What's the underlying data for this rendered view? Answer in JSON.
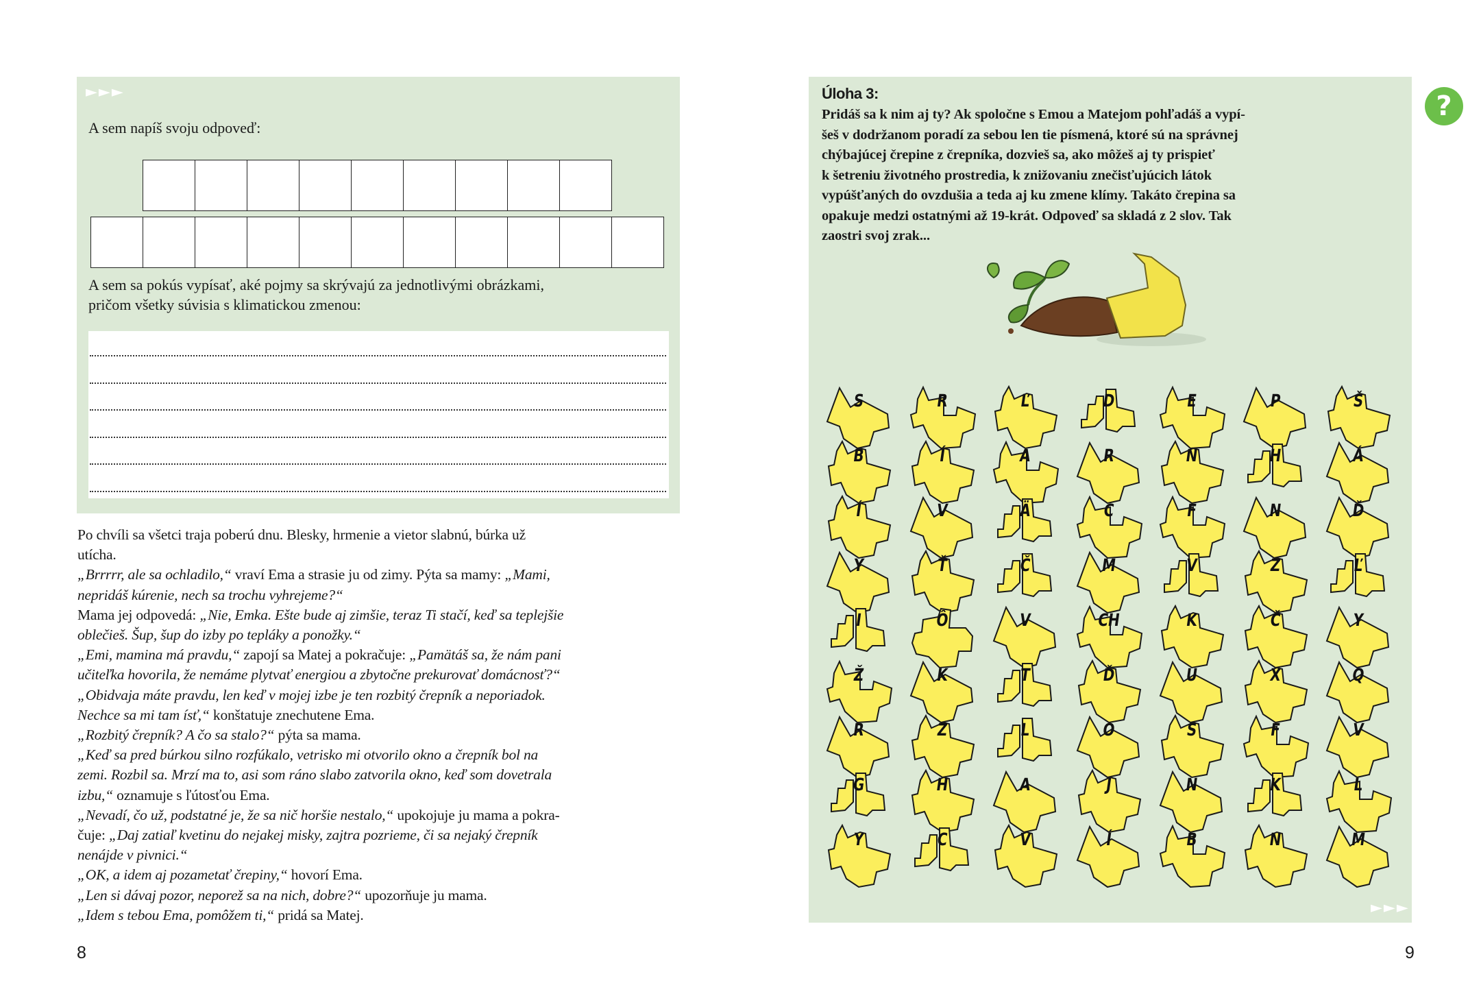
{
  "left_page": {
    "page_number": "8",
    "answer_prompt": "A sem napíš svoju odpoveď:",
    "answer_row1_cells": 9,
    "answer_row2_cells": 11,
    "concepts_prompt_line1": "A sem sa pokús vypísať, aké pojmy sa skrývajú za jednotlivými obrázkami,",
    "concepts_prompt_line2": "pričom všetky súvisia s klimatickou zmenou:",
    "dotted_lines": 6,
    "story_lines": [
      [
        {
          "t": "Po chvíli sa všetci traja poberú dnu. Blesky, hrmenie a vietor slabnú, búrka už",
          "i": false
        }
      ],
      [
        {
          "t": "utícha.",
          "i": false
        }
      ],
      [
        {
          "t": "„Brrrrr, ale sa ochladilo,“",
          "i": true
        },
        {
          "t": " vraví Ema a strasie ju od zimy. Pýta sa mamy: ",
          "i": false
        },
        {
          "t": "„Mami,",
          "i": true
        }
      ],
      [
        {
          "t": "nepridáš kúrenie, nech sa trochu vyhrejeme?“",
          "i": true
        }
      ],
      [
        {
          "t": "Mama jej odpovedá: ",
          "i": false
        },
        {
          "t": "„Nie, Emka. Ešte bude aj zimšie, teraz Ti stačí, keď sa teplejšie",
          "i": true
        }
      ],
      [
        {
          "t": "oblečieš. Šup, šup do izby po tepláky a ponožky.“",
          "i": true
        }
      ],
      [
        {
          "t": "„Emi, mamina má pravdu,“",
          "i": true
        },
        {
          "t": " zapojí sa Matej a pokračuje: ",
          "i": false
        },
        {
          "t": "„Pamätáš sa, že nám pani",
          "i": true
        }
      ],
      [
        {
          "t": "učiteľka hovorila, že nemáme plytvať energiou a zbytočne prekurovať domácnosť?“",
          "i": true
        }
      ],
      [
        {
          "t": " „Obidvaja máte pravdu, len keď v mojej izbe je ten rozbitý črepník a neporiadok.",
          "i": true
        }
      ],
      [
        {
          "t": "Nechce sa mi tam ísť,“",
          "i": true
        },
        {
          "t": " konštatuje znechutene Ema.",
          "i": false
        }
      ],
      [
        {
          "t": "„Rozbitý črepník? A čo sa stalo?“",
          "i": true
        },
        {
          "t": " pýta sa mama.",
          "i": false
        }
      ],
      [
        {
          "t": "„Keď sa pred búrkou silno rozfúkalo, vetrisko mi otvorilo okno a črepník bol na",
          "i": true
        }
      ],
      [
        {
          "t": "zemi. Rozbil sa. Mrzí ma to, asi som ráno slabo zatvorila okno, keď som dovetrala",
          "i": true
        }
      ],
      [
        {
          "t": "izbu,“",
          "i": true
        },
        {
          "t": " oznamuje s ľútosťou Ema.",
          "i": false
        }
      ],
      [
        {
          "t": "„Nevadí, čo už, podstatné je, že sa nič horšie nestalo,“",
          "i": true
        },
        {
          "t": " upokojuje ju mama a pokra-",
          "i": false
        }
      ],
      [
        {
          "t": "čuje: ",
          "i": false
        },
        {
          "t": "„Daj zatiaľ kvetinu do nejakej misky, zajtra pozrieme, či sa nejaký črepník",
          "i": true
        }
      ],
      [
        {
          "t": "nenájde v pivnici.“",
          "i": true
        }
      ],
      [
        {
          "t": "„OK, a idem aj pozametať črepiny,“",
          "i": true
        },
        {
          "t": " hovorí Ema.",
          "i": false
        }
      ],
      [
        {
          "t": "„Len si dávaj pozor, neporež sa na nich, dobre?“",
          "i": true
        },
        {
          "t": " upozorňuje ju mama.",
          "i": false
        }
      ],
      [
        {
          "t": "„Idem s tebou Ema, pomôžem ti,“",
          "i": true
        },
        {
          "t": " pridá sa Matej.",
          "i": false
        }
      ]
    ]
  },
  "right_page": {
    "page_number": "9",
    "task_title": "Úloha 3:",
    "task_lines": [
      "Pridáš sa k nim aj ty? Ak spoločne s Emou a Matejom pohľadáš a vypí-",
      "šeš v dodržanom poradí za sebou len tie písmená, ktoré sú na správnej",
      "chýbajúcej črepine z črepníka, dozvieš sa, ako môžeš aj ty prispieť",
      "k šetreniu životného prostredia, k znižovaniu znečisťujúcich látok",
      "vypúšťaných do ovzdušia a teda aj ku zmene klímy. Takáto črepina sa",
      "opakuje medzi ostatnými až 19-krát. Odpoveď sa skladá z 2 slov. Tak",
      "zaostri svoj zrak..."
    ],
    "help_icon": "question-circle-icon",
    "shard_grid": [
      [
        "S",
        "R",
        "Ľ",
        "D",
        "E",
        "P",
        "Š"
      ],
      [
        "B",
        "Í",
        "A",
        "R",
        "N",
        "H",
        "Á"
      ],
      [
        "Í",
        "V",
        "Ä",
        "C",
        "F",
        "N",
        "Ď"
      ],
      [
        "Y",
        "Ť",
        "Č",
        "M",
        "V",
        "Z",
        "Ľ"
      ],
      [
        "I",
        "Ô",
        "V",
        "CH",
        "K",
        "Č",
        "Y"
      ],
      [
        "Ž",
        "K",
        "T",
        "Ď",
        "U",
        "X",
        "Q"
      ],
      [
        "R",
        "Z",
        "L",
        "O",
        "S",
        "F",
        "V"
      ],
      [
        "G",
        "H",
        "A",
        "J",
        "N",
        "K",
        "L"
      ],
      [
        "Y",
        "C",
        "V",
        "Í",
        "B",
        "N",
        "M"
      ]
    ]
  },
  "decor": {
    "arrows": "►►►",
    "help_glyph": "?"
  },
  "colors": {
    "panel": "#dce9d6",
    "shard": "#fbee5c",
    "help": "#6cbf4a"
  }
}
